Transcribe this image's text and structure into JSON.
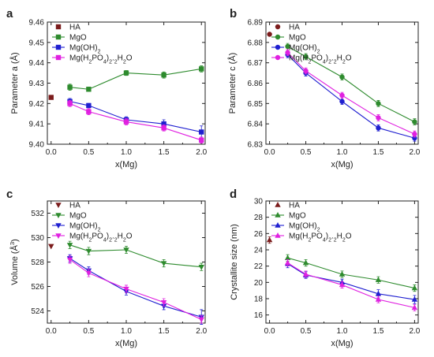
{
  "chart_data": [
    {
      "panel_letter": "a",
      "type": "line",
      "xlabel": "x(Mg)",
      "ylabel": "Parameter a (Å)",
      "xlim": [
        -0.05,
        2.05
      ],
      "ylim": [
        9.4,
        9.46
      ],
      "xticks": [
        "0.0",
        "0.5",
        "1.0",
        "1.5",
        "2.0"
      ],
      "xtick_values": [
        0,
        0.5,
        1.0,
        1.5,
        2.0
      ],
      "yticks": [
        "9.40",
        "9.41",
        "9.42",
        "9.43",
        "9.44",
        "9.45",
        "9.46"
      ],
      "ytick_values": [
        9.4,
        9.41,
        9.42,
        9.43,
        9.44,
        9.45,
        9.46
      ],
      "marker": "square",
      "legend": "top-left",
      "series": [
        {
          "name": "HA",
          "color": "#7b1c1c",
          "x": [
            0
          ],
          "values": [
            9.423
          ],
          "err": [
            0
          ]
        },
        {
          "name": "MgO",
          "color": "#2e8b2e",
          "x": [
            0.25,
            0.5,
            1.0,
            1.5,
            2.0
          ],
          "values": [
            9.428,
            9.427,
            9.435,
            9.434,
            9.437
          ],
          "err": [
            0.0015,
            0.001,
            0.0012,
            0.0015,
            0.0015
          ]
        },
        {
          "name": "Mg(OH)2",
          "color": "#1f1fd0",
          "x": [
            0.25,
            0.5,
            1.0,
            1.5,
            2.0
          ],
          "values": [
            9.421,
            9.419,
            9.412,
            9.41,
            9.406
          ],
          "err": [
            0.0015,
            0.001,
            0.0015,
            0.002,
            0.003
          ]
        },
        {
          "name": "Mg(H2PO4)2.2H2O",
          "color": "#e020e0",
          "x": [
            0.25,
            0.5,
            1.0,
            1.5,
            2.0
          ],
          "values": [
            9.42,
            9.416,
            9.411,
            9.408,
            9.402
          ],
          "err": [
            0.0015,
            0.0015,
            0.0015,
            0.0015,
            0.0015
          ]
        }
      ]
    },
    {
      "panel_letter": "b",
      "type": "line",
      "xlabel": "x(Mg)",
      "ylabel": "Parameter c (Å)",
      "xlim": [
        -0.05,
        2.05
      ],
      "ylim": [
        6.83,
        6.89
      ],
      "xticks": [
        "0.0",
        "0.5",
        "1.0",
        "1.5",
        "2.0"
      ],
      "xtick_values": [
        0,
        0.5,
        1.0,
        1.5,
        2.0
      ],
      "yticks": [
        "6.83",
        "6.84",
        "6.85",
        "6.86",
        "6.87",
        "6.88",
        "6.89"
      ],
      "ytick_values": [
        6.83,
        6.84,
        6.85,
        6.86,
        6.87,
        6.88,
        6.89
      ],
      "marker": "circle",
      "legend": "top-right",
      "series": [
        {
          "name": "HA",
          "color": "#7b1c1c",
          "x": [
            0
          ],
          "values": [
            6.884
          ],
          "err": [
            0
          ]
        },
        {
          "name": "MgO",
          "color": "#2e8b2e",
          "x": [
            0.25,
            0.5,
            1.0,
            1.5,
            2.0
          ],
          "values": [
            6.878,
            6.873,
            6.863,
            6.85,
            6.841
          ],
          "err": [
            0.0015,
            0.0015,
            0.0015,
            0.0015,
            0.0015
          ]
        },
        {
          "name": "Mg(OH)2",
          "color": "#1f1fd0",
          "x": [
            0.25,
            0.5,
            1.0,
            1.5,
            2.0
          ],
          "values": [
            6.874,
            6.865,
            6.851,
            6.838,
            6.833
          ],
          "err": [
            0.0015,
            0.0015,
            0.0015,
            0.0015,
            0.0015
          ]
        },
        {
          "name": "Mg(H2PO4)2.2H2O",
          "color": "#e020e0",
          "x": [
            0.25,
            0.5,
            1.0,
            1.5,
            2.0
          ],
          "values": [
            6.875,
            6.866,
            6.854,
            6.843,
            6.835
          ],
          "err": [
            0.0015,
            0.0015,
            0.0015,
            0.0015,
            0.0015
          ]
        }
      ]
    },
    {
      "panel_letter": "c",
      "type": "line",
      "xlabel": "x(Mg)",
      "ylabel": "Volume (Å3)",
      "xlim": [
        -0.05,
        2.05
      ],
      "ylim": [
        523,
        533
      ],
      "xticks": [
        "0.0",
        "0.5",
        "1.0",
        "1.5",
        "2.0"
      ],
      "xtick_values": [
        0,
        0.5,
        1.0,
        1.5,
        2.0
      ],
      "yticks": [
        "524",
        "526",
        "528",
        "530",
        "532"
      ],
      "ytick_values": [
        524,
        526,
        528,
        530,
        532
      ],
      "marker": "triangle-down",
      "legend": "top-right",
      "series": [
        {
          "name": "HA",
          "color": "#7b1c1c",
          "x": [
            0
          ],
          "values": [
            529.3
          ],
          "err": [
            0
          ]
        },
        {
          "name": "MgO",
          "color": "#2e8b2e",
          "x": [
            0.25,
            0.5,
            1.0,
            1.5,
            2.0
          ],
          "values": [
            529.4,
            528.9,
            529.0,
            527.9,
            527.6
          ],
          "err": [
            0.3,
            0.3,
            0.3,
            0.3,
            0.3
          ]
        },
        {
          "name": "Mg(OH)2",
          "color": "#1f1fd0",
          "x": [
            0.25,
            0.5,
            1.0,
            1.5,
            2.0
          ],
          "values": [
            528.3,
            527.3,
            525.6,
            524.4,
            523.5
          ],
          "err": [
            0.3,
            0.3,
            0.3,
            0.3,
            0.6
          ]
        },
        {
          "name": "Mg(H2PO4)2.2H2O",
          "color": "#e020e0",
          "x": [
            0.25,
            0.5,
            1.0,
            1.5,
            2.0
          ],
          "values": [
            528.2,
            527.1,
            525.8,
            524.7,
            523.3
          ],
          "err": [
            0.3,
            0.3,
            0.3,
            0.3,
            0.3
          ]
        }
      ]
    },
    {
      "panel_letter": "d",
      "type": "line",
      "xlabel": "x(Mg)",
      "ylabel": "Crystallite size (nm)",
      "xlim": [
        -0.05,
        2.05
      ],
      "ylim": [
        15,
        30
      ],
      "xticks": [
        "0.0",
        "0.5",
        "1.0",
        "1.5",
        "2.0"
      ],
      "xtick_values": [
        0,
        0.5,
        1.0,
        1.5,
        2.0
      ],
      "yticks": [
        "16",
        "18",
        "20",
        "22",
        "24",
        "26",
        "28",
        "30"
      ],
      "ytick_values": [
        16,
        18,
        20,
        22,
        24,
        26,
        28,
        30
      ],
      "marker": "triangle-up",
      "legend": "top-right",
      "series": [
        {
          "name": "HA",
          "color": "#7b1c1c",
          "x": [
            0
          ],
          "values": [
            25.2
          ],
          "err": [
            0.4
          ]
        },
        {
          "name": "MgO",
          "color": "#2e8b2e",
          "x": [
            0.25,
            0.5,
            1.0,
            1.5,
            2.0
          ],
          "values": [
            23.0,
            22.4,
            21.0,
            20.3,
            19.3
          ],
          "err": [
            0.4,
            0.4,
            0.4,
            0.4,
            0.4
          ]
        },
        {
          "name": "Mg(OH)2",
          "color": "#1f1fd0",
          "x": [
            0.25,
            0.5,
            1.0,
            1.5,
            2.0
          ],
          "values": [
            22.3,
            20.9,
            20.0,
            18.6,
            17.9
          ],
          "err": [
            0.5,
            0.4,
            0.4,
            0.5,
            0.5
          ]
        },
        {
          "name": "Mg(H2PO4)2.2H2O",
          "color": "#e020e0",
          "x": [
            0.25,
            0.5,
            1.0,
            1.5,
            2.0
          ],
          "values": [
            22.4,
            21.0,
            19.7,
            17.9,
            16.9
          ],
          "err": [
            0.4,
            0.4,
            0.4,
            0.4,
            0.4
          ]
        }
      ]
    }
  ]
}
